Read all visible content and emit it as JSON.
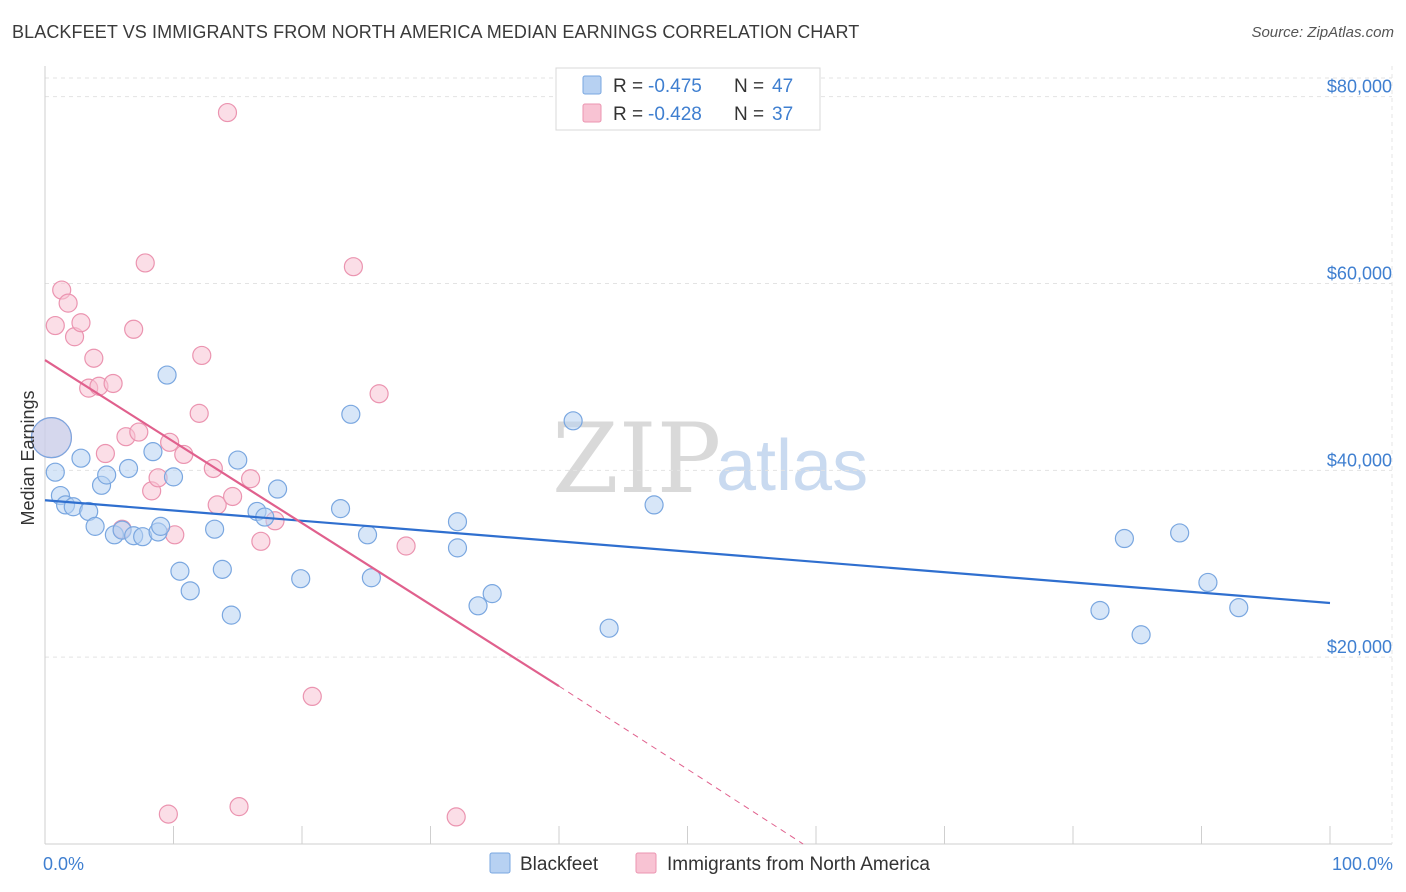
{
  "title": "BLACKFEET VS IMMIGRANTS FROM NORTH AMERICA MEDIAN EARNINGS CORRELATION CHART",
  "source": "Source: ZipAtlas.com",
  "watermark": {
    "zip": "ZIP",
    "atlas": "atlas"
  },
  "legend": {
    "r_label": "R =",
    "n_label": "N =",
    "rows": [
      {
        "r": "-0.475",
        "n": "47"
      },
      {
        "r": "-0.428",
        "n": "37"
      }
    ]
  },
  "colors": {
    "blue_fill": "#b7d1f2",
    "blue_stroke": "#7aa7e0",
    "blue_line": "#2f6fcf",
    "pink_fill": "#f8c3d3",
    "pink_stroke": "#eb94b0",
    "pink_line": "#e0608d",
    "axis_text": "#3f7fd0"
  },
  "chart_data": {
    "type": "scatter",
    "title": "BLACKFEET VS IMMIGRANTS FROM NORTH AMERICA MEDIAN EARNINGS CORRELATION CHART",
    "xlabel": "",
    "ylabel": "Median Earnings",
    "xlim": [
      0,
      100
    ],
    "ylim": [
      0,
      82000
    ],
    "x_tick_labels": [
      "0.0%",
      "100.0%"
    ],
    "y_ticks": [
      20000,
      40000,
      60000,
      80000
    ],
    "y_tick_labels": [
      "$20,000",
      "$40,000",
      "$60,000",
      "$80,000"
    ],
    "grid": true,
    "legend_position": "top-center",
    "series": [
      {
        "name": "Blackfeet",
        "color": "#7aa7e0",
        "r": -0.475,
        "n": 47,
        "trend": {
          "x": [
            0,
            100
          ],
          "y": [
            36800,
            25800
          ],
          "dashed_beyond": null
        },
        "points": [
          {
            "x": 0.5,
            "y": 43500,
            "big": true
          },
          {
            "x": 0.8,
            "y": 39800
          },
          {
            "x": 1.2,
            "y": 37300
          },
          {
            "x": 1.6,
            "y": 36300
          },
          {
            "x": 2.2,
            "y": 36100
          },
          {
            "x": 2.8,
            "y": 41300
          },
          {
            "x": 3.4,
            "y": 35600
          },
          {
            "x": 3.9,
            "y": 34000
          },
          {
            "x": 4.4,
            "y": 38400
          },
          {
            "x": 4.8,
            "y": 39500
          },
          {
            "x": 5.4,
            "y": 33100
          },
          {
            "x": 6.0,
            "y": 33600
          },
          {
            "x": 6.5,
            "y": 40200
          },
          {
            "x": 6.9,
            "y": 33000
          },
          {
            "x": 7.6,
            "y": 32900
          },
          {
            "x": 8.4,
            "y": 42000
          },
          {
            "x": 8.8,
            "y": 33400
          },
          {
            "x": 9.0,
            "y": 34000
          },
          {
            "x": 9.5,
            "y": 50200
          },
          {
            "x": 10.0,
            "y": 39300
          },
          {
            "x": 10.5,
            "y": 29200
          },
          {
            "x": 11.3,
            "y": 27100
          },
          {
            "x": 13.2,
            "y": 33700
          },
          {
            "x": 13.8,
            "y": 29400
          },
          {
            "x": 14.5,
            "y": 24500
          },
          {
            "x": 15.0,
            "y": 41100
          },
          {
            "x": 16.5,
            "y": 35600
          },
          {
            "x": 17.1,
            "y": 35000
          },
          {
            "x": 18.1,
            "y": 38000
          },
          {
            "x": 19.9,
            "y": 28400
          },
          {
            "x": 23.0,
            "y": 35900
          },
          {
            "x": 23.8,
            "y": 46000
          },
          {
            "x": 25.1,
            "y": 33100
          },
          {
            "x": 25.4,
            "y": 28500
          },
          {
            "x": 32.1,
            "y": 34500
          },
          {
            "x": 32.1,
            "y": 31700
          },
          {
            "x": 33.7,
            "y": 25500
          },
          {
            "x": 34.8,
            "y": 26800
          },
          {
            "x": 41.1,
            "y": 45300
          },
          {
            "x": 43.9,
            "y": 23100
          },
          {
            "x": 47.4,
            "y": 36300
          },
          {
            "x": 82.1,
            "y": 25000
          },
          {
            "x": 84.0,
            "y": 32700
          },
          {
            "x": 85.3,
            "y": 22400
          },
          {
            "x": 88.3,
            "y": 33300
          },
          {
            "x": 90.5,
            "y": 28000
          },
          {
            "x": 92.9,
            "y": 25300
          }
        ]
      },
      {
        "name": "Immigrants from North America",
        "color": "#eb94b0",
        "r": -0.428,
        "n": 37,
        "trend": {
          "x": [
            0,
            40
          ],
          "y": [
            51800,
            16900
          ],
          "dashed_to": {
            "x": 59,
            "y": 0
          }
        },
        "points": [
          {
            "x": 0.5,
            "y": 43500,
            "big": true
          },
          {
            "x": 0.8,
            "y": 55500
          },
          {
            "x": 1.3,
            "y": 59300
          },
          {
            "x": 1.8,
            "y": 57900
          },
          {
            "x": 2.3,
            "y": 54300
          },
          {
            "x": 2.8,
            "y": 55800
          },
          {
            "x": 3.4,
            "y": 48800
          },
          {
            "x": 3.8,
            "y": 52000
          },
          {
            "x": 4.2,
            "y": 49000
          },
          {
            "x": 4.7,
            "y": 41800
          },
          {
            "x": 5.3,
            "y": 49300
          },
          {
            "x": 6.0,
            "y": 33700
          },
          {
            "x": 6.3,
            "y": 43600
          },
          {
            "x": 6.9,
            "y": 55100
          },
          {
            "x": 7.3,
            "y": 44100
          },
          {
            "x": 7.8,
            "y": 62200
          },
          {
            "x": 8.3,
            "y": 37800
          },
          {
            "x": 8.8,
            "y": 39200
          },
          {
            "x": 9.6,
            "y": 3200
          },
          {
            "x": 9.7,
            "y": 43000
          },
          {
            "x": 10.1,
            "y": 33100
          },
          {
            "x": 10.8,
            "y": 41700
          },
          {
            "x": 12.0,
            "y": 46100
          },
          {
            "x": 12.2,
            "y": 52300
          },
          {
            "x": 13.1,
            "y": 40200
          },
          {
            "x": 13.4,
            "y": 36300
          },
          {
            "x": 14.2,
            "y": 78300
          },
          {
            "x": 14.6,
            "y": 37200
          },
          {
            "x": 15.1,
            "y": 4000
          },
          {
            "x": 16.0,
            "y": 39100
          },
          {
            "x": 16.8,
            "y": 32400
          },
          {
            "x": 17.9,
            "y": 34600
          },
          {
            "x": 20.8,
            "y": 15800
          },
          {
            "x": 24.0,
            "y": 61800
          },
          {
            "x": 26.0,
            "y": 48200
          },
          {
            "x": 28.1,
            "y": 31900
          },
          {
            "x": 32.0,
            "y": 2900
          }
        ]
      }
    ]
  },
  "bottom_legend": [
    "Blackfeet",
    "Immigrants from North America"
  ]
}
